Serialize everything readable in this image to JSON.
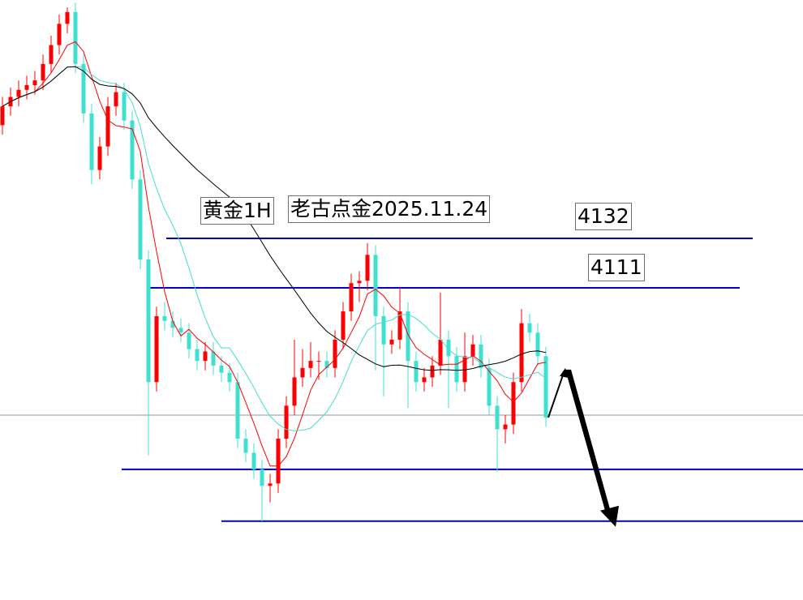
{
  "chart_data": {
    "type": "candlestick",
    "title": "",
    "annotations": {
      "symbol_label": "黄金1H",
      "author_date_label": "老古点金2025.11.24",
      "level_label_1": "4132",
      "level_label_2": "4111"
    },
    "levels": [
      {
        "price": 4132,
        "color": "#0000c0"
      },
      {
        "price": 4111,
        "color": "#0000c0"
      },
      {
        "price": 4034,
        "color": "#0000c0"
      },
      {
        "price": 4012,
        "color": "#0000c0"
      }
    ],
    "current_price_line": {
      "price": 4057,
      "color": "#8496a8"
    },
    "colors": {
      "up": "#ff0000",
      "down": "#40e0d0",
      "ma_fast": "#ff0000",
      "ma_mid": "#40e0d0",
      "ma_slow": "#000000",
      "arrow": "#000000"
    },
    "moving_averages": [
      5,
      10,
      30
    ],
    "axes_visible": false,
    "grid": false,
    "ohlc": [
      [
        4180,
        4192,
        4176,
        4188
      ],
      [
        4188,
        4196,
        4184,
        4192
      ],
      [
        4192,
        4199,
        4188,
        4195
      ],
      [
        4195,
        4201,
        4191,
        4197
      ],
      [
        4197,
        4203,
        4193,
        4199
      ],
      [
        4199,
        4210,
        4195,
        4206
      ],
      [
        4206,
        4218,
        4202,
        4214
      ],
      [
        4214,
        4227,
        4210,
        4223
      ],
      [
        4223,
        4230,
        4219,
        4228
      ],
      [
        4228,
        4232,
        4202,
        4206
      ],
      [
        4206,
        4210,
        4181,
        4185
      ],
      [
        4185,
        4189,
        4155,
        4161
      ],
      [
        4161,
        4175,
        4157,
        4171
      ],
      [
        4171,
        4192,
        4167,
        4188
      ],
      [
        4188,
        4198,
        4184,
        4194
      ],
      [
        4194,
        4198,
        4178,
        4182
      ],
      [
        4182,
        4186,
        4153,
        4157
      ],
      [
        4157,
        4161,
        4119,
        4123
      ],
      [
        4123,
        4127,
        4040,
        4071
      ],
      [
        4071,
        4103,
        4067,
        4099
      ],
      [
        4099,
        4105,
        4093,
        4097
      ],
      [
        4097,
        4101,
        4090,
        4094
      ],
      [
        4094,
        4098,
        4088,
        4092
      ],
      [
        4092,
        4096,
        4081,
        4085
      ],
      [
        4085,
        4089,
        4076,
        4080
      ],
      [
        4080,
        4088,
        4076,
        4084
      ],
      [
        4084,
        4088,
        4074,
        4078
      ],
      [
        4078,
        4082,
        4071,
        4075
      ],
      [
        4075,
        4079,
        4067,
        4071
      ],
      [
        4071,
        4075,
        4043,
        4047
      ],
      [
        4047,
        4051,
        4037,
        4041
      ],
      [
        4041,
        4045,
        4030,
        4034
      ],
      [
        4034,
        4038,
        4012,
        4027
      ],
      [
        4027,
        4032,
        4020,
        4028
      ],
      [
        4028,
        4051,
        4024,
        4047
      ],
      [
        4047,
        4065,
        4043,
        4061
      ],
      [
        4061,
        4089,
        4057,
        4073
      ],
      [
        4073,
        4085,
        4069,
        4077
      ],
      [
        4077,
        4088,
        4073,
        4080
      ],
      [
        4080,
        4084,
        4072,
        4080
      ],
      [
        4080,
        4084,
        4073,
        4077
      ],
      [
        4077,
        4093,
        4073,
        4089
      ],
      [
        4089,
        4105,
        4085,
        4101
      ],
      [
        4101,
        4117,
        4097,
        4113
      ],
      [
        4113,
        4118,
        4105,
        4114
      ],
      [
        4114,
        4130,
        4110,
        4125
      ],
      [
        4125,
        4129,
        4076,
        4099
      ],
      [
        4099,
        4103,
        4065,
        4087
      ],
      [
        4087,
        4093,
        4083,
        4089
      ],
      [
        4089,
        4111,
        4085,
        4101
      ],
      [
        4101,
        4105,
        4060,
        4080
      ],
      [
        4080,
        4084,
        4067,
        4071
      ],
      [
        4071,
        4077,
        4067,
        4073
      ],
      [
        4073,
        4082,
        4069,
        4078
      ],
      [
        4078,
        4109,
        4074,
        4089
      ],
      [
        4089,
        4093,
        4060,
        4082
      ],
      [
        4082,
        4086,
        4067,
        4071
      ],
      [
        4071,
        4092,
        4067,
        4082
      ],
      [
        4082,
        4091,
        4078,
        4087
      ],
      [
        4087,
        4091,
        4073,
        4077
      ],
      [
        4077,
        4081,
        4057,
        4061
      ],
      [
        4061,
        4065,
        4033,
        4051
      ],
      [
        4051,
        4057,
        4045,
        4053
      ],
      [
        4053,
        4075,
        4049,
        4071
      ],
      [
        4071,
        4102,
        4067,
        4096
      ],
      [
        4096,
        4100,
        4088,
        4092
      ],
      [
        4092,
        4096,
        4078,
        4082
      ],
      [
        4082,
        4086,
        4052,
        4056
      ]
    ],
    "projection": {
      "up_to": 4077,
      "down_to": 4011
    }
  }
}
